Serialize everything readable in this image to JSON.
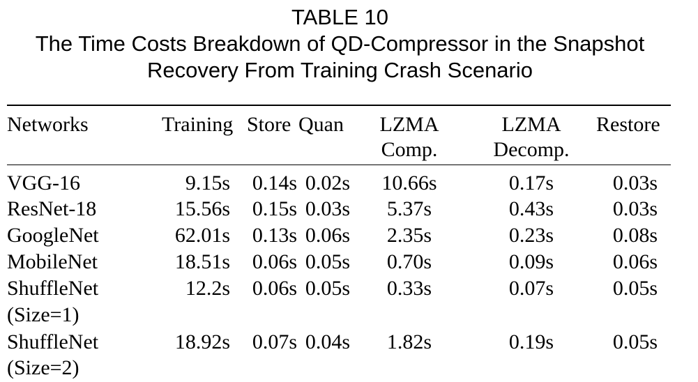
{
  "table": {
    "label": "TABLE 10",
    "title_line1": "The Time Costs Breakdown of QD-Compressor in the Snapshot",
    "title_line2": "Recovery From Training Crash Scenario",
    "headers": [
      {
        "line1": "Networks",
        "line2": ""
      },
      {
        "line1": "Training",
        "line2": ""
      },
      {
        "line1": "Store",
        "line2": ""
      },
      {
        "line1": "Quan",
        "line2": ""
      },
      {
        "line1": "LZMA",
        "line2": "Comp."
      },
      {
        "line1": "LZMA",
        "line2": "Decomp."
      },
      {
        "line1": "Restore",
        "line2": ""
      }
    ],
    "rows": [
      {
        "name": [
          "VGG-16",
          ""
        ],
        "training": "9.15s",
        "store": "0.14s",
        "quan": "0.02s",
        "lzma_comp": "10.66s",
        "lzma_decomp": "0.17s",
        "restore": "0.03s"
      },
      {
        "name": [
          "ResNet-18",
          ""
        ],
        "training": "15.56s",
        "store": "0.15s",
        "quan": "0.03s",
        "lzma_comp": "5.37s",
        "lzma_decomp": "0.43s",
        "restore": "0.03s"
      },
      {
        "name": [
          "GoogleNet",
          ""
        ],
        "training": "62.01s",
        "store": "0.13s",
        "quan": "0.06s",
        "lzma_comp": "2.35s",
        "lzma_decomp": "0.23s",
        "restore": "0.08s"
      },
      {
        "name": [
          "MobileNet",
          ""
        ],
        "training": "18.51s",
        "store": "0.06s",
        "quan": "0.05s",
        "lzma_comp": "0.70s",
        "lzma_decomp": "0.09s",
        "restore": "0.06s"
      },
      {
        "name": [
          "ShuffleNet",
          "(Size=1)"
        ],
        "training": "12.2s",
        "store": "0.06s",
        "quan": "0.05s",
        "lzma_comp": "0.33s",
        "lzma_decomp": "0.07s",
        "restore": "0.05s"
      },
      {
        "name": [
          "ShuffleNet",
          "(Size=2)"
        ],
        "training": "18.92s",
        "store": "0.07s",
        "quan": "0.04s",
        "lzma_comp": "1.82s",
        "lzma_decomp": "0.19s",
        "restore": "0.05s"
      }
    ]
  }
}
